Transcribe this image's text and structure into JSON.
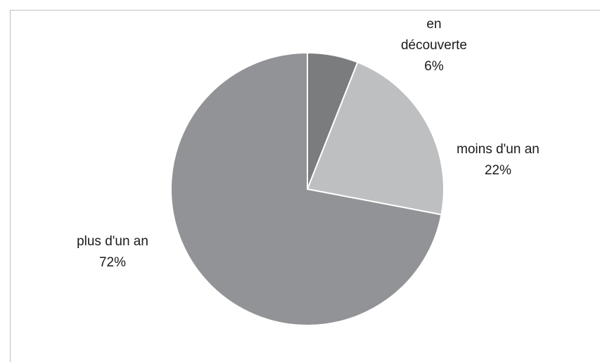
{
  "chart_data": {
    "type": "pie",
    "title": "",
    "categories": [
      "en découverte",
      "moins d'un an",
      "plus d'un an"
    ],
    "values": [
      6,
      22,
      72
    ],
    "unit": "%",
    "colors": [
      "#7b7c7e",
      "#bebfc1",
      "#929396"
    ],
    "slice_border_color": "#ffffff",
    "start": "12 o'clock, clockwise",
    "legend": "none",
    "data_labels": [
      {
        "lines": [
          "en",
          "découverte",
          "6%"
        ]
      },
      {
        "lines": [
          "moins d'un an",
          "22%"
        ]
      },
      {
        "lines": [
          "plus d'un an",
          "72%"
        ]
      }
    ]
  }
}
